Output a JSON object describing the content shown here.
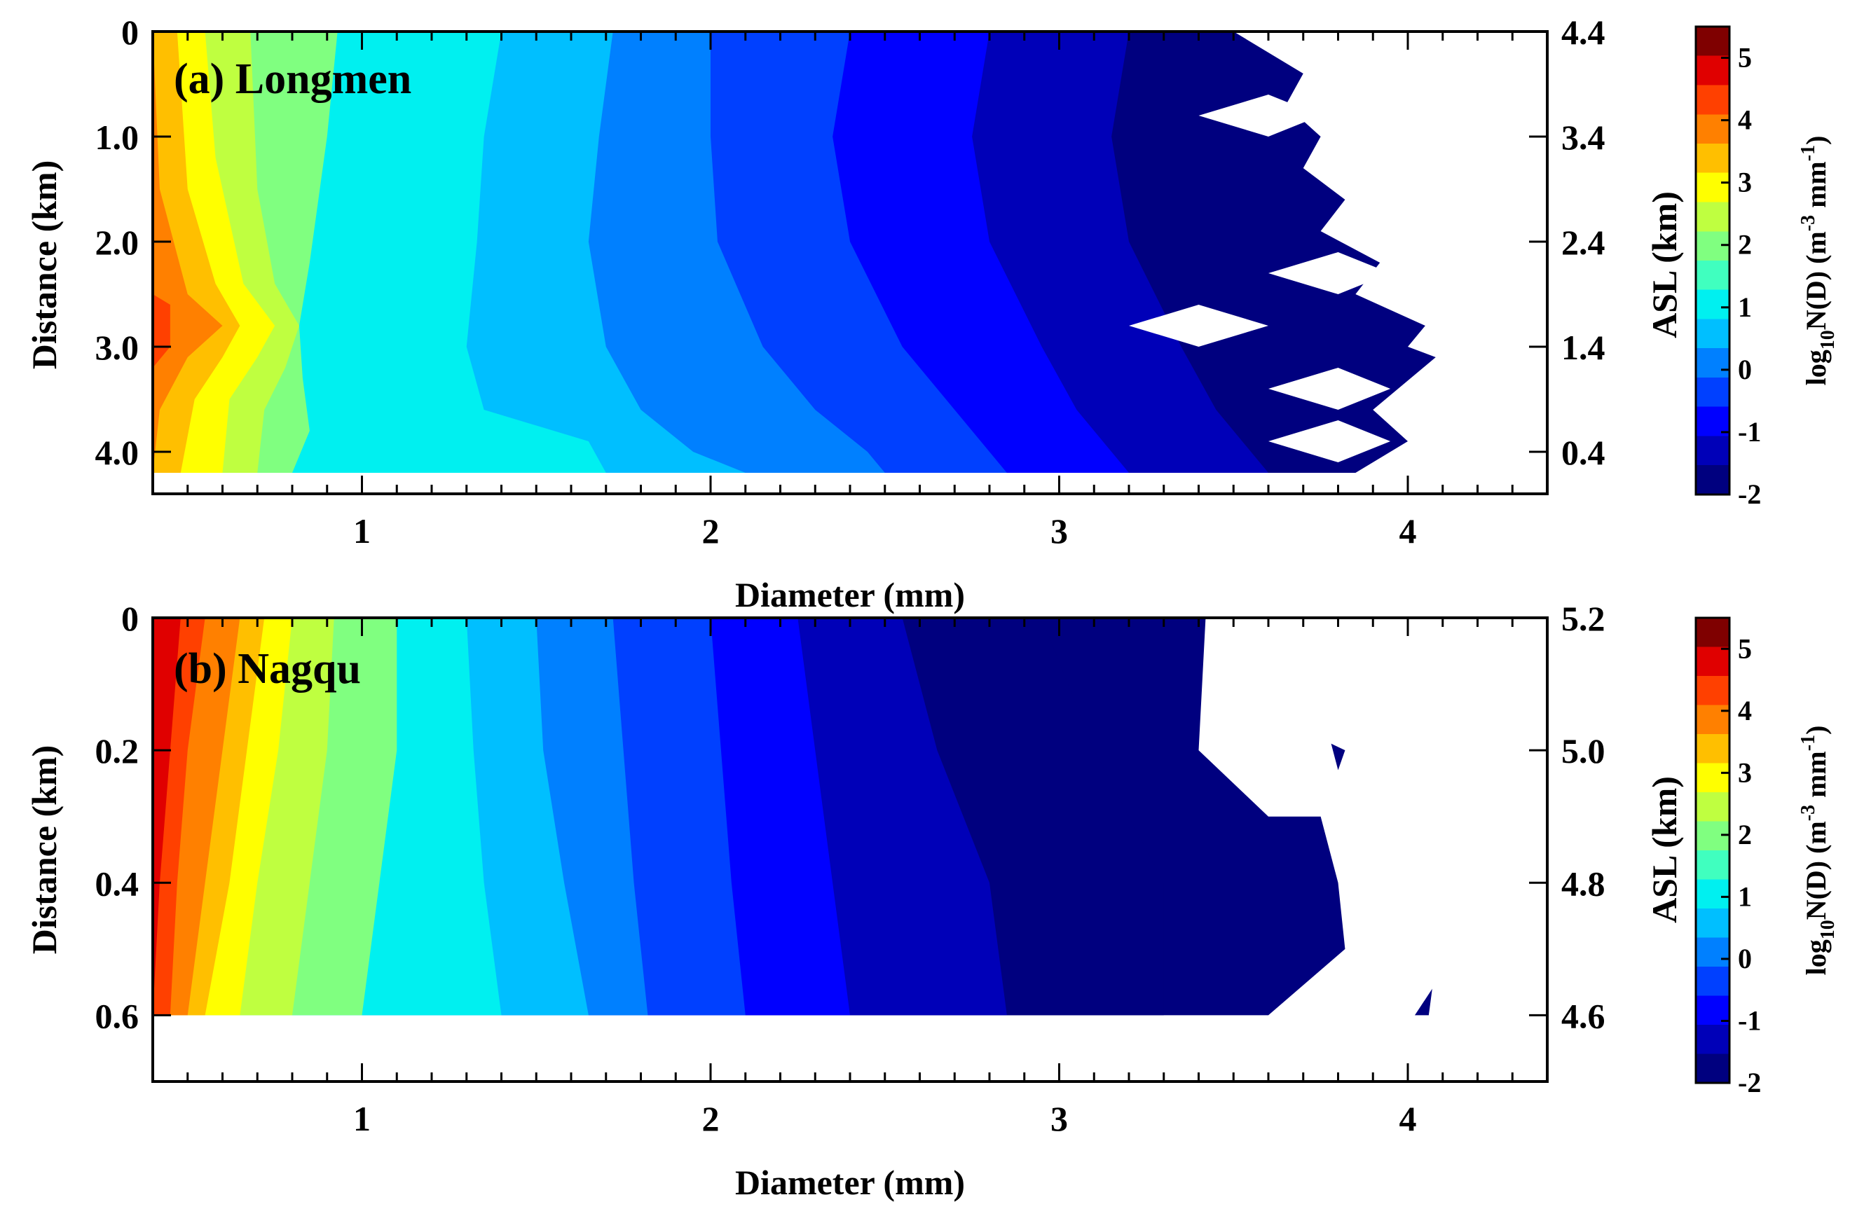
{
  "chart_data": [
    {
      "type": "heatmap",
      "title": "(a) Longmen",
      "xlabel": "Diameter (mm)",
      "ylabel": "Distance (km)",
      "y2label": "ASL (km)",
      "colorbar_label": {
        "prefix": "log",
        "sub": "10",
        "mid": "N(D) (m",
        "sup1": "-3",
        "gap": " mm",
        "sup2": "-1",
        "suffix": ")"
      },
      "xlim": [
        0.4,
        4.4
      ],
      "ylim": [
        0,
        4.4
      ],
      "xticks": [
        1,
        2,
        3,
        4
      ],
      "yticks": [
        0,
        1.0,
        2.0,
        3.0,
        4.0
      ],
      "yticklabels": [
        "0",
        "1.0",
        "2.0",
        "3.0",
        "4.0"
      ],
      "y2ticks": [
        0,
        1.0,
        2.0,
        3.0,
        4.0
      ],
      "y2ticklabels": [
        "4.4",
        "3.4",
        "2.4",
        "1.4",
        "0.4"
      ],
      "data_extent": {
        "y": [
          0,
          4.2
        ]
      },
      "colorbar_range": [
        -2,
        5.5
      ],
      "colorbar_ticks": [
        -2,
        -1,
        0,
        1,
        2,
        3,
        4,
        5
      ],
      "contour_boundaries": [
        {
          "level": 4.5,
          "points": [
            [
              0.4,
              0
            ],
            [
              0.4,
              4.2
            ]
          ]
        },
        {
          "level": 4.0,
          "points": [
            [
              0.4,
              0
            ],
            [
              0.4,
              2.5
            ],
            [
              0.45,
              2.6
            ],
            [
              0.45,
              3.0
            ],
            [
              0.4,
              3.2
            ],
            [
              0.4,
              4.2
            ]
          ]
        },
        {
          "level": 3.5,
          "points": [
            [
              0.4,
              0
            ],
            [
              0.42,
              1.5
            ],
            [
              0.5,
              2.5
            ],
            [
              0.6,
              2.8
            ],
            [
              0.5,
              3.1
            ],
            [
              0.42,
              3.6
            ],
            [
              0.4,
              4.2
            ]
          ]
        },
        {
          "level": 3.0,
          "points": [
            [
              0.47,
              0
            ],
            [
              0.5,
              1.5
            ],
            [
              0.58,
              2.4
            ],
            [
              0.65,
              2.8
            ],
            [
              0.6,
              3.1
            ],
            [
              0.52,
              3.5
            ],
            [
              0.48,
              4.2
            ]
          ]
        },
        {
          "level": 2.5,
          "points": [
            [
              0.55,
              0
            ],
            [
              0.58,
              1.2
            ],
            [
              0.66,
              2.4
            ],
            [
              0.75,
              2.8
            ],
            [
              0.7,
              3.1
            ],
            [
              0.62,
              3.5
            ],
            [
              0.6,
              4.2
            ]
          ]
        },
        {
          "level": 2.0,
          "points": [
            [
              0.68,
              0
            ],
            [
              0.7,
              1.5
            ],
            [
              0.75,
              2.4
            ],
            [
              0.82,
              2.8
            ],
            [
              0.78,
              3.2
            ],
            [
              0.72,
              3.6
            ],
            [
              0.7,
              4.2
            ]
          ]
        },
        {
          "level": 1.5,
          "points": [
            [
              0.93,
              0
            ],
            [
              0.9,
              1.0
            ],
            [
              0.85,
              2.2
            ],
            [
              0.82,
              2.8
            ],
            [
              0.83,
              3.3
            ],
            [
              0.85,
              3.8
            ],
            [
              0.8,
              4.2
            ]
          ]
        },
        {
          "level": 1.0,
          "points": [
            [
              1.4,
              0
            ],
            [
              1.35,
              1.0
            ],
            [
              1.33,
              2.0
            ],
            [
              1.3,
              3.0
            ],
            [
              1.35,
              3.6
            ],
            [
              1.65,
              3.9
            ],
            [
              1.7,
              4.2
            ]
          ]
        },
        {
          "level": 0.5,
          "points": [
            [
              1.72,
              0
            ],
            [
              1.68,
              1.0
            ],
            [
              1.65,
              2.0
            ],
            [
              1.7,
              3.0
            ],
            [
              1.8,
              3.6
            ],
            [
              1.95,
              4.0
            ],
            [
              2.1,
              4.2
            ]
          ]
        },
        {
          "level": 0.0,
          "points": [
            [
              2.0,
              0
            ],
            [
              2.0,
              1.0
            ],
            [
              2.02,
              2.0
            ],
            [
              2.15,
              3.0
            ],
            [
              2.3,
              3.6
            ],
            [
              2.45,
              4.0
            ],
            [
              2.5,
              4.2
            ]
          ]
        },
        {
          "level": -0.5,
          "points": [
            [
              2.4,
              0
            ],
            [
              2.35,
              1.0
            ],
            [
              2.4,
              2.0
            ],
            [
              2.55,
              3.0
            ],
            [
              2.7,
              3.6
            ],
            [
              2.8,
              4.0
            ],
            [
              2.85,
              4.2
            ]
          ]
        },
        {
          "level": -1.0,
          "points": [
            [
              2.8,
              0
            ],
            [
              2.75,
              1.0
            ],
            [
              2.8,
              2.0
            ],
            [
              2.95,
              3.0
            ],
            [
              3.05,
              3.6
            ],
            [
              3.15,
              4.0
            ],
            [
              3.2,
              4.2
            ]
          ]
        },
        {
          "level": -1.5,
          "points": [
            [
              3.2,
              0
            ],
            [
              3.15,
              1.0
            ],
            [
              3.2,
              2.0
            ],
            [
              3.35,
              3.0
            ],
            [
              3.45,
              3.6
            ],
            [
              3.55,
              4.0
            ],
            [
              3.6,
              4.2
            ]
          ]
        }
      ],
      "edge_boundary": [
        [
          3.5,
          0
        ],
        [
          3.7,
          0.4
        ],
        [
          3.65,
          0.7
        ],
        [
          3.75,
          1.0
        ],
        [
          3.7,
          1.3
        ],
        [
          3.82,
          1.6
        ],
        [
          3.75,
          1.9
        ],
        [
          3.92,
          2.2
        ],
        [
          3.85,
          2.5
        ],
        [
          4.05,
          2.8
        ],
        [
          4.0,
          3.0
        ],
        [
          4.08,
          3.1
        ],
        [
          3.9,
          3.6
        ],
        [
          4.0,
          3.9
        ],
        [
          3.85,
          4.2
        ]
      ],
      "missing_regions": [
        [
          [
            3.4,
            0.8
          ],
          [
            3.6,
            0.6
          ],
          [
            3.75,
            0.8
          ],
          [
            3.6,
            1.0
          ]
        ],
        [
          [
            3.6,
            2.3
          ],
          [
            3.8,
            2.1
          ],
          [
            3.95,
            2.3
          ],
          [
            3.8,
            2.5
          ]
        ],
        [
          [
            3.2,
            2.8
          ],
          [
            3.4,
            2.6
          ],
          [
            3.6,
            2.8
          ],
          [
            3.4,
            3.0
          ]
        ],
        [
          [
            3.6,
            3.4
          ],
          [
            3.8,
            3.2
          ],
          [
            3.95,
            3.4
          ],
          [
            3.8,
            3.6
          ]
        ],
        [
          [
            3.6,
            3.9
          ],
          [
            3.8,
            3.7
          ],
          [
            3.95,
            3.9
          ],
          [
            3.8,
            4.1
          ]
        ]
      ]
    },
    {
      "type": "heatmap",
      "title": "(b) Nagqu",
      "xlabel": "Diameter (mm)",
      "ylabel": "Distance (km)",
      "y2label": "ASL (km)",
      "colorbar_label": {
        "prefix": "log",
        "sub": "10",
        "mid": "N(D) (m",
        "sup1": "-3",
        "gap": " mm",
        "sup2": "-1",
        "suffix": ")"
      },
      "xlim": [
        0.4,
        4.4
      ],
      "ylim": [
        0,
        0.7
      ],
      "xticks": [
        1,
        2,
        3,
        4
      ],
      "yticks": [
        0,
        0.2,
        0.4,
        0.6
      ],
      "yticklabels": [
        "0",
        "0.2",
        "0.4",
        "0.6"
      ],
      "y2ticks": [
        0,
        0.2,
        0.4,
        0.6
      ],
      "y2ticklabels": [
        "5.2",
        "5.0",
        "4.8",
        "4.6"
      ],
      "data_extent": {
        "y": [
          0,
          0.6
        ]
      },
      "colorbar_range": [
        -2,
        5.5
      ],
      "colorbar_ticks": [
        -2,
        -1,
        0,
        1,
        2,
        3,
        4,
        5
      ],
      "contour_boundaries": [
        {
          "level": 5.0,
          "points": [
            [
              0.4,
              0
            ],
            [
              0.4,
              0.6
            ]
          ]
        },
        {
          "level": 4.5,
          "points": [
            [
              0.48,
              0
            ],
            [
              0.45,
              0.2
            ],
            [
              0.42,
              0.4
            ],
            [
              0.4,
              0.6
            ]
          ]
        },
        {
          "level": 4.0,
          "points": [
            [
              0.55,
              0
            ],
            [
              0.5,
              0.2
            ],
            [
              0.47,
              0.4
            ],
            [
              0.45,
              0.6
            ]
          ]
        },
        {
          "level": 3.5,
          "points": [
            [
              0.65,
              0
            ],
            [
              0.6,
              0.2
            ],
            [
              0.55,
              0.4
            ],
            [
              0.5,
              0.6
            ]
          ]
        },
        {
          "level": 3.0,
          "points": [
            [
              0.72,
              0
            ],
            [
              0.67,
              0.2
            ],
            [
              0.62,
              0.4
            ],
            [
              0.55,
              0.6
            ]
          ]
        },
        {
          "level": 2.5,
          "points": [
            [
              0.8,
              0
            ],
            [
              0.76,
              0.2
            ],
            [
              0.7,
              0.4
            ],
            [
              0.65,
              0.6
            ]
          ]
        },
        {
          "level": 2.0,
          "points": [
            [
              0.92,
              0
            ],
            [
              0.9,
              0.2
            ],
            [
              0.85,
              0.4
            ],
            [
              0.8,
              0.6
            ]
          ]
        },
        {
          "level": 1.5,
          "points": [
            [
              1.1,
              0
            ],
            [
              1.1,
              0.2
            ],
            [
              1.05,
              0.4
            ],
            [
              1.0,
              0.6
            ]
          ]
        },
        {
          "level": 1.0,
          "points": [
            [
              1.3,
              0
            ],
            [
              1.32,
              0.2
            ],
            [
              1.35,
              0.4
            ],
            [
              1.4,
              0.6
            ]
          ]
        },
        {
          "level": 0.5,
          "points": [
            [
              1.5,
              0
            ],
            [
              1.52,
              0.2
            ],
            [
              1.58,
              0.4
            ],
            [
              1.65,
              0.6
            ]
          ]
        },
        {
          "level": 0.0,
          "points": [
            [
              1.72,
              0
            ],
            [
              1.75,
              0.2
            ],
            [
              1.78,
              0.4
            ],
            [
              1.82,
              0.6
            ]
          ]
        },
        {
          "level": -0.5,
          "points": [
            [
              2.0,
              0
            ],
            [
              2.03,
              0.2
            ],
            [
              2.06,
              0.4
            ],
            [
              2.1,
              0.6
            ]
          ]
        },
        {
          "level": -1.0,
          "points": [
            [
              2.25,
              0
            ],
            [
              2.3,
              0.2
            ],
            [
              2.35,
              0.4
            ],
            [
              2.4,
              0.6
            ]
          ]
        },
        {
          "level": -1.5,
          "points": [
            [
              2.55,
              0
            ],
            [
              2.65,
              0.2
            ],
            [
              2.8,
              0.4
            ],
            [
              2.85,
              0.6
            ]
          ]
        },
        {
          "level": -2.0,
          "points": [
            [
              2.95,
              0
            ],
            [
              3.1,
              0.2
            ],
            [
              3.3,
              0.4
            ],
            [
              3.3,
              0.6
            ]
          ]
        }
      ],
      "edge_boundary": [
        [
          3.42,
          0
        ],
        [
          3.4,
          0.2
        ],
        [
          3.6,
          0.3
        ],
        [
          3.75,
          0.3
        ],
        [
          3.8,
          0.4
        ],
        [
          3.82,
          0.5
        ],
        [
          3.6,
          0.6
        ]
      ],
      "specks": [
        [
          [
            3.78,
            0.19
          ],
          [
            3.82,
            0.2
          ],
          [
            3.8,
            0.23
          ]
        ],
        [
          [
            4.02,
            0.6
          ],
          [
            4.07,
            0.56
          ],
          [
            4.06,
            0.6
          ]
        ]
      ]
    }
  ],
  "colorbar_colors": [
    "#00007f",
    "#0000b8",
    "#0000ff",
    "#0040ff",
    "#0080ff",
    "#00bfff",
    "#00f0f0",
    "#40ffbf",
    "#80ff80",
    "#bfff40",
    "#ffff00",
    "#ffbf00",
    "#ff8000",
    "#ff4000",
    "#e00000",
    "#7f0000"
  ]
}
